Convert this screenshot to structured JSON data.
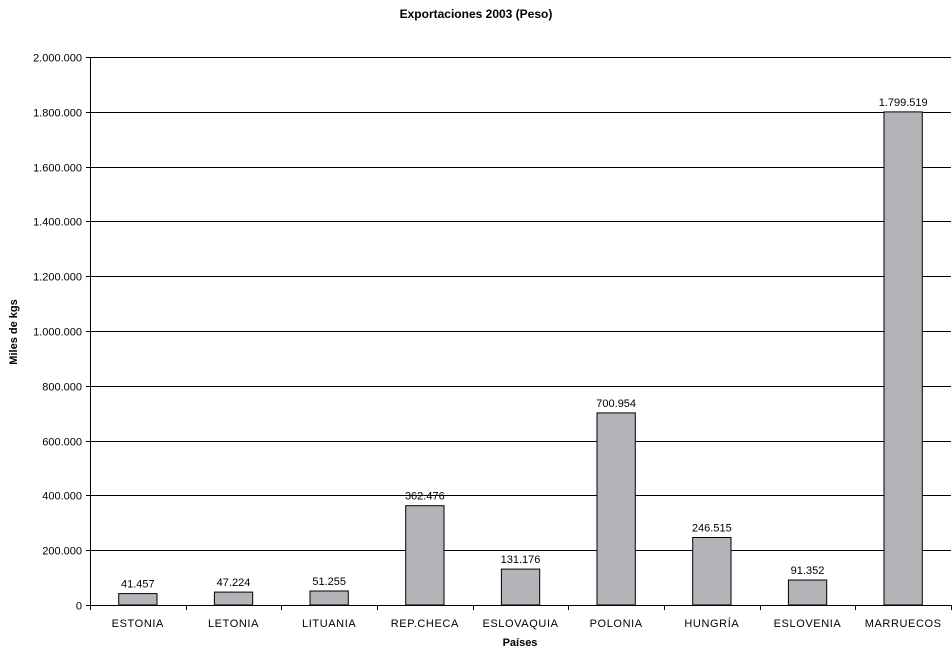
{
  "chart_data": {
    "type": "bar",
    "title": "Exportaciones 2003 (Peso)",
    "xlabel": "Países",
    "ylabel": "Miles de kgs",
    "categories": [
      "ESTONIA",
      "LETONIA",
      "LITUANIA",
      "REP.CHECA",
      "ESLOVAQUIA",
      "POLONIA",
      "HUNGRÍA",
      "ESLOVENIA",
      "MARRUECOS"
    ],
    "values": [
      41457,
      47224,
      51255,
      362476,
      131176,
      700954,
      246515,
      91352,
      1799519
    ],
    "data_labels": [
      "41.457",
      "47.224",
      "51.255",
      "362.476",
      "131.176",
      "700.954",
      "246.515",
      "91.352",
      "1.799.519"
    ],
    "ylim": [
      0,
      2000000
    ],
    "yticks": [
      0,
      200000,
      400000,
      600000,
      800000,
      1000000,
      1200000,
      1400000,
      1600000,
      1800000,
      2000000
    ],
    "ytick_labels": [
      "0",
      "200.000",
      "400.000",
      "600.000",
      "800.000",
      "1.000.000",
      "1.200.000",
      "1.400.000",
      "1.600.000",
      "1.800.000",
      "2.000.000"
    ],
    "grid": true,
    "legend": "none",
    "bar_color": "#b4b4b8"
  }
}
